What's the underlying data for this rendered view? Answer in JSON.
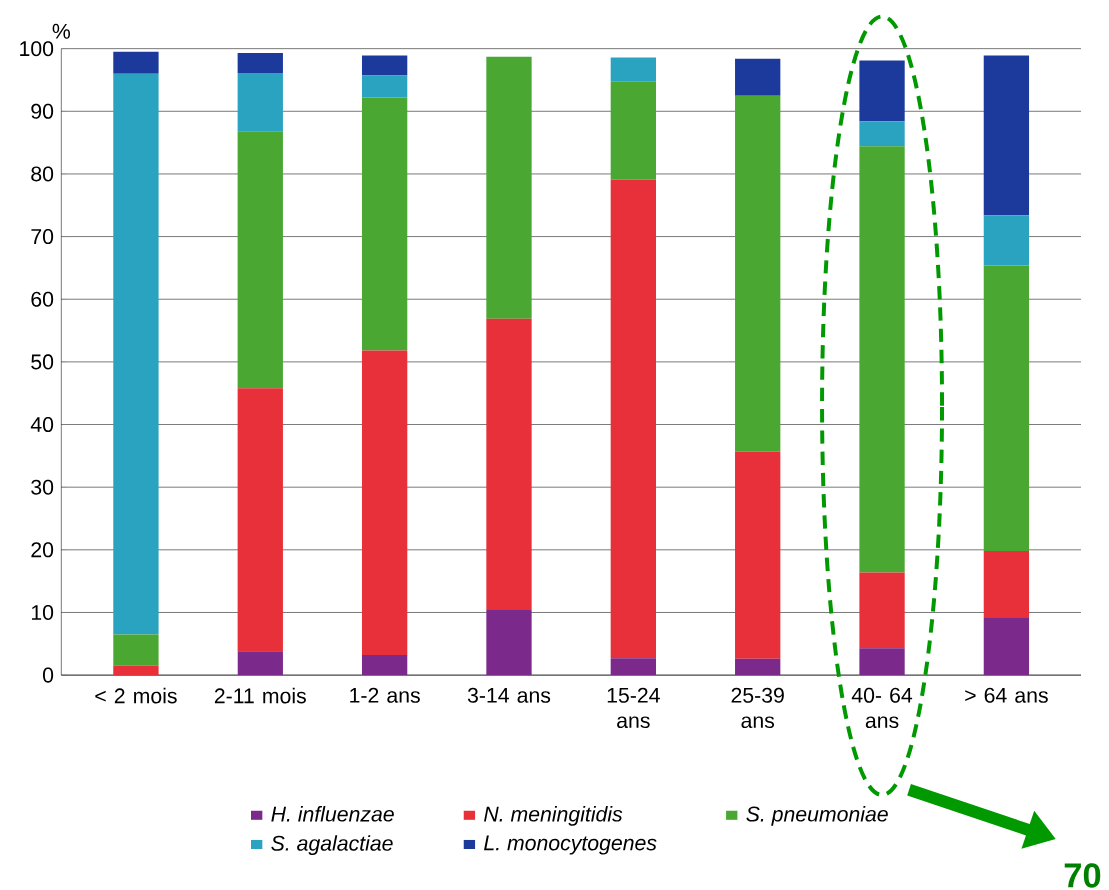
{
  "chart_data": {
    "type": "bar",
    "stacked": true,
    "ylabel": "%",
    "categories": [
      "< 2 mois",
      "2-11 mois",
      "1-2 ans",
      "3-14 ans",
      "15-24 ans",
      "25-39 ans",
      "40- 64 ans",
      "> 64 ans"
    ],
    "series": [
      {
        "name": "*H. influenzae*",
        "color": "#7b2a8c",
        "values": [
          0,
          3.8,
          3.2,
          10.4,
          2.7,
          2.6,
          4.3,
          9.1
        ]
      },
      {
        "name": "*N. meningitidis*",
        "color": "#e8303a",
        "values": [
          1.5,
          42,
          48.6,
          46.5,
          76.4,
          33.1,
          12.1,
          10.7
        ]
      },
      {
        "name": "*S. pneumoniae*",
        "color": "#4aa832",
        "values": [
          5,
          41,
          40.4,
          41.8,
          15.6,
          56.8,
          68,
          45.6
        ]
      },
      {
        "name": "*S. agalactiae*",
        "color": "#2aa3c0",
        "values": [
          89.5,
          9.3,
          3.5,
          0,
          3.9,
          0,
          4,
          8
        ]
      },
      {
        "name": "*L. monocytogenes*",
        "color": "#1c3a9c",
        "values": [
          3.5,
          3.2,
          3.2,
          0,
          0,
          5.9,
          9.7,
          25.5
        ]
      }
    ],
    "ylim": [
      0,
      100
    ],
    "yticks": [
      0,
      10,
      20,
      30,
      40,
      50,
      60,
      70,
      80,
      90,
      100
    ],
    "grid": "y",
    "legend": "bottom",
    "annotations": [
      "70"
    ]
  }
}
